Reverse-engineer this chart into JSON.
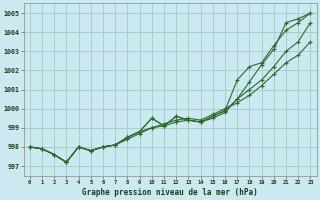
{
  "background_color": "#cce8f0",
  "grid_color": "#aacccc",
  "line_color": "#2d6a2d",
  "xlabel": "Graphe pression niveau de la mer (hPa)",
  "ylim": [
    996.5,
    1005.5
  ],
  "xlim": [
    -0.5,
    23.5
  ],
  "yticks": [
    997,
    998,
    999,
    1000,
    1001,
    1002,
    1003,
    1004,
    1005
  ],
  "xticks": [
    0,
    1,
    2,
    3,
    4,
    5,
    6,
    7,
    8,
    9,
    10,
    11,
    12,
    13,
    14,
    15,
    16,
    17,
    18,
    19,
    20,
    21,
    22,
    23
  ],
  "series": [
    {
      "x": [
        0,
        1,
        2,
        3,
        4,
        5,
        6,
        7,
        8,
        9,
        10,
        11,
        12,
        13,
        14,
        15,
        16,
        17,
        18,
        19,
        20,
        21,
        22,
        23
      ],
      "y": [
        998.0,
        997.9,
        997.6,
        997.2,
        998.0,
        997.8,
        998.0,
        998.1,
        998.5,
        998.8,
        999.5,
        999.1,
        999.6,
        999.4,
        999.3,
        999.6,
        999.9,
        1000.5,
        1001.4,
        1002.3,
        1003.1,
        1004.5,
        1004.7,
        1005.0
      ]
    },
    {
      "x": [
        0,
        1,
        2,
        3,
        4,
        5,
        6,
        7,
        8,
        9,
        10,
        11,
        12,
        13,
        14,
        15,
        16,
        17,
        18,
        19,
        20,
        21,
        22,
        23
      ],
      "y": [
        998.0,
        997.9,
        997.6,
        997.2,
        998.0,
        997.8,
        998.0,
        998.1,
        998.5,
        998.8,
        999.5,
        999.1,
        999.6,
        999.4,
        999.3,
        999.6,
        999.9,
        1001.5,
        1002.2,
        1002.4,
        1003.3,
        1004.1,
        1004.5,
        1005.0
      ]
    },
    {
      "x": [
        0,
        1,
        2,
        3,
        4,
        5,
        6,
        7,
        8,
        9,
        10,
        11,
        12,
        13,
        14,
        15,
        16,
        17,
        18,
        19,
        20,
        21,
        22,
        23
      ],
      "y": [
        998.0,
        997.9,
        997.6,
        997.2,
        998.0,
        997.8,
        998.0,
        998.1,
        998.5,
        998.8,
        999.0,
        999.1,
        999.3,
        999.4,
        999.3,
        999.5,
        999.8,
        1000.5,
        1001.0,
        1001.5,
        1002.2,
        1003.0,
        1003.5,
        1004.5
      ]
    },
    {
      "x": [
        0,
        1,
        2,
        3,
        4,
        5,
        6,
        7,
        8,
        9,
        10,
        11,
        12,
        13,
        14,
        15,
        16,
        17,
        18,
        19,
        20,
        21,
        22,
        23
      ],
      "y": [
        998.0,
        997.9,
        997.6,
        997.2,
        998.0,
        997.8,
        998.0,
        998.1,
        998.4,
        998.7,
        999.0,
        999.2,
        999.4,
        999.5,
        999.4,
        999.7,
        1000.0,
        1000.3,
        1000.7,
        1001.2,
        1001.8,
        1002.4,
        1002.8,
        1003.5
      ]
    }
  ]
}
